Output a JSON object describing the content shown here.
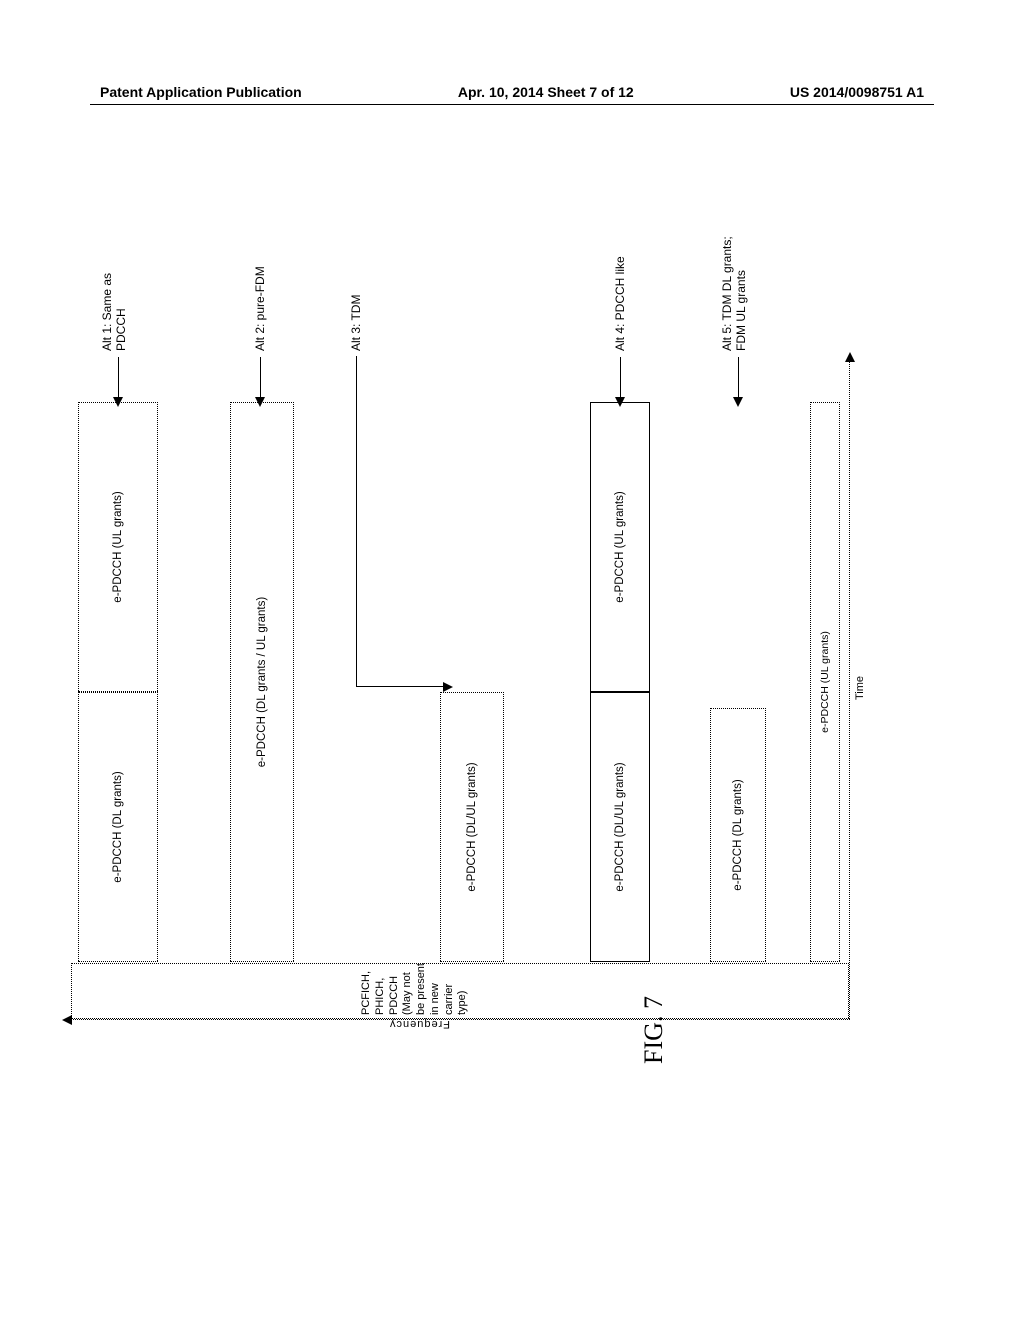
{
  "header": {
    "left": "Patent Application Publication",
    "center": "Apr. 10, 2014  Sheet 7 of 12",
    "right": "US 2014/0098751 A1"
  },
  "axes": {
    "freq_label": "Frequency",
    "time_label": "Time"
  },
  "legacy": {
    "line1": "PCFICH,",
    "line2": "PHICH,",
    "line3": "PDCCH",
    "line4": "(May not",
    "line5": "be present",
    "line6": "in new",
    "line7": "carrier",
    "line8": "type)"
  },
  "alt1": {
    "box_dl": "e-PDCCH (DL grants)",
    "box_ul": "e-PDCCH (UL grants)",
    "label": "Alt 1: Same as\nPDCCH"
  },
  "alt2": {
    "box": "e-PDCCH (DL grants / UL grants)",
    "label": "Alt 2: pure-FDM"
  },
  "alt3": {
    "box": "e-PDCCH (DL/UL grants)",
    "label": "Alt 3: TDM"
  },
  "alt4": {
    "box_dl": "e-PDCCH (DL/UL grants)",
    "box_ul": "e-PDCCH (UL grants)",
    "label": "Alt 4: PDCCH like"
  },
  "alt5": {
    "box_dl": "e-PDCCH (DL grants)",
    "box_ul": "e-PDCCH (UL grants)",
    "label": "Alt 5: TDM DL grants;\nFDM UL grants"
  },
  "caption": "FIG. 7",
  "colors": {
    "line": "#000000",
    "bg": "#ffffff"
  }
}
